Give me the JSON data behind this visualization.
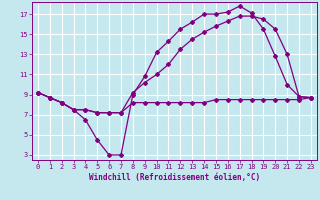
{
  "xlabel": "Windchill (Refroidissement éolien,°C)",
  "bg_color": "#c5e8ef",
  "line_color": "#800080",
  "grid_color": "#ffffff",
  "xlim": [
    -0.5,
    23.5
  ],
  "ylim": [
    2.5,
    18.2
  ],
  "yticks": [
    3,
    5,
    7,
    9,
    11,
    13,
    15,
    17
  ],
  "xticks": [
    0,
    1,
    2,
    3,
    4,
    5,
    6,
    7,
    8,
    9,
    10,
    11,
    12,
    13,
    14,
    15,
    16,
    17,
    18,
    19,
    20,
    21,
    22,
    23
  ],
  "line1_x": [
    0,
    1,
    2,
    3,
    4,
    5,
    6,
    7,
    8,
    9,
    10,
    11,
    12,
    13,
    14,
    15,
    16,
    17,
    18,
    19,
    20,
    21,
    22,
    23
  ],
  "line1_y": [
    9.2,
    8.7,
    8.2,
    7.5,
    6.5,
    4.5,
    3.0,
    3.0,
    9.0,
    10.8,
    13.2,
    14.3,
    15.5,
    16.2,
    17.0,
    17.0,
    17.2,
    17.8,
    17.1,
    15.5,
    12.8,
    10.0,
    8.8,
    8.7
  ],
  "line2_x": [
    0,
    1,
    2,
    3,
    4,
    5,
    6,
    7,
    8,
    9,
    10,
    11,
    12,
    13,
    14,
    15,
    16,
    17,
    18,
    19,
    20,
    21,
    22,
    23
  ],
  "line2_y": [
    9.2,
    8.7,
    8.2,
    7.5,
    7.5,
    7.2,
    7.2,
    7.2,
    9.2,
    10.2,
    11.0,
    12.0,
    13.5,
    14.5,
    15.2,
    15.8,
    16.3,
    16.8,
    16.8,
    16.5,
    15.5,
    13.0,
    8.8,
    8.7
  ],
  "line3_x": [
    0,
    1,
    2,
    3,
    4,
    5,
    6,
    7,
    8,
    9,
    10,
    11,
    12,
    13,
    14,
    15,
    16,
    17,
    18,
    19,
    20,
    21,
    22,
    23
  ],
  "line3_y": [
    9.2,
    8.7,
    8.2,
    7.5,
    7.5,
    7.2,
    7.2,
    7.2,
    8.2,
    8.2,
    8.2,
    8.2,
    8.2,
    8.2,
    8.2,
    8.5,
    8.5,
    8.5,
    8.5,
    8.5,
    8.5,
    8.5,
    8.5,
    8.7
  ]
}
